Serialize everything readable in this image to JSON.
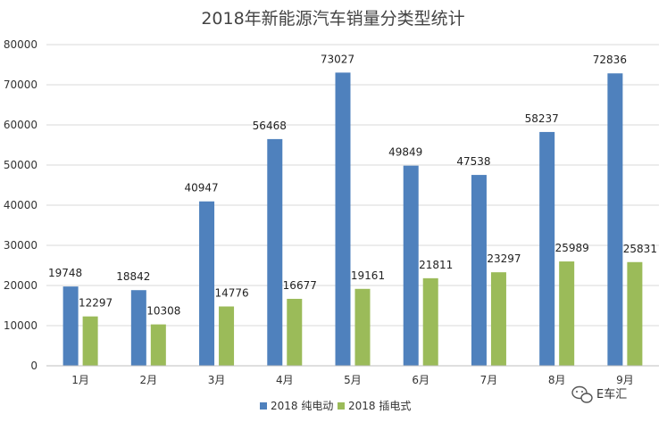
{
  "chart_data": {
    "type": "bar",
    "title": "2018年新能源汽车销量分类型统计",
    "xlabel": "",
    "ylabel": "",
    "categories": [
      "1月",
      "2月",
      "3月",
      "4月",
      "5月",
      "6月",
      "7月",
      "8月",
      "9月"
    ],
    "series": [
      {
        "name": "2018 纯电动",
        "color": "#4f81bd",
        "values": [
          19748,
          18842,
          40947,
          56468,
          73027,
          49849,
          47538,
          58237,
          72836
        ]
      },
      {
        "name": "2018 插电式",
        "color": "#9bbb59",
        "values": [
          12297,
          10308,
          14776,
          16677,
          19161,
          21811,
          23297,
          25989,
          25831
        ]
      }
    ],
    "ylim": [
      0,
      80000
    ],
    "yticks": [
      0,
      10000,
      20000,
      30000,
      40000,
      50000,
      60000,
      70000,
      80000
    ],
    "grid": true,
    "legend": "bottom-center",
    "data_labels": true
  },
  "watermark": {
    "text": "E车汇",
    "icon": "wechat-icon"
  }
}
